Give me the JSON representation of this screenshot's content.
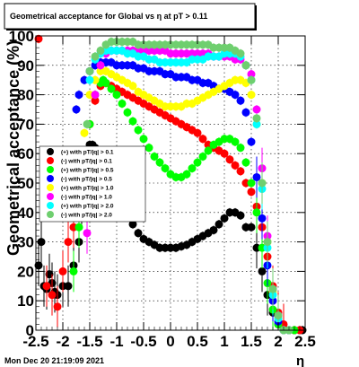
{
  "chart_data": {
    "type": "scatter",
    "title": "Geometrical acceptance for Global vs   η at pT > 0.11",
    "xlabel": "η",
    "ylabel": "Geometrical acceptance (%)",
    "xlim": [
      -2.5,
      2.5
    ],
    "ylim": [
      0,
      100
    ],
    "x_ticks": [
      "-2.5",
      "-2",
      "-1.5",
      "-1",
      "-0.5",
      "0",
      "0.5",
      "1",
      "1.5",
      "2",
      "2.5"
    ],
    "y_ticks": [
      "0",
      "10",
      "20",
      "30",
      "40",
      "50",
      "60",
      "70",
      "80",
      "90",
      "100"
    ],
    "grid": true,
    "legend_position": "left",
    "timestamp": "Mon Dec 20 21:19:09 2021",
    "series": [
      {
        "name": "(+) with pT/|q| > 0.1",
        "color": "#000000",
        "x": [
          -2.45,
          -2.4,
          -2.35,
          -2.3,
          -2.25,
          -2.2,
          -2.15,
          -2.1,
          -2.0,
          -1.9,
          -1.8,
          -1.7,
          -1.65,
          -1.6,
          -1.55,
          -1.5,
          -1.45,
          -1.4,
          -1.35,
          -1.3,
          -1.25,
          -1.2,
          -1.1,
          -1.0,
          -0.9,
          -0.8,
          -0.7,
          -0.6,
          -0.5,
          -0.4,
          -0.3,
          -0.2,
          -0.1,
          0.0,
          0.1,
          0.2,
          0.3,
          0.4,
          0.5,
          0.6,
          0.7,
          0.8,
          0.9,
          1.0,
          1.1,
          1.2,
          1.3,
          1.4,
          1.5,
          1.6,
          1.7,
          1.8,
          1.9,
          2.0,
          2.1,
          2.2,
          2.3,
          2.4,
          2.45
        ],
        "y": [
          22,
          30,
          15,
          14,
          19,
          16,
          13,
          12,
          15,
          15,
          22,
          30,
          43,
          55,
          60,
          63,
          63,
          62,
          61,
          60,
          59,
          57,
          52,
          47,
          43,
          39,
          36,
          33,
          31,
          30,
          29,
          28,
          28,
          28,
          28,
          28.5,
          29,
          30,
          31,
          32,
          33,
          34,
          36,
          38,
          40,
          40,
          39,
          35,
          35,
          28,
          20,
          12,
          6,
          2,
          0.5,
          0,
          0,
          0,
          0
        ]
      },
      {
        "name": "(-) with pT/|q| > 0.1",
        "color": "#ff0000",
        "x": [
          -2.45,
          -2.3,
          -2.2,
          -2.1,
          -2.0,
          -1.9,
          -1.8,
          -1.7,
          -1.6,
          -1.5,
          -1.4,
          -1.3,
          -1.2,
          -1.1,
          -1.0,
          -0.9,
          -0.8,
          -0.7,
          -0.6,
          -0.5,
          -0.4,
          -0.3,
          -0.2,
          -0.1,
          0.0,
          0.1,
          0.2,
          0.3,
          0.4,
          0.5,
          0.6,
          0.7,
          0.8,
          0.9,
          1.0,
          1.1,
          1.2,
          1.3,
          1.4,
          1.5,
          1.6,
          1.7,
          1.8,
          1.9,
          2.0,
          2.1,
          2.2,
          2.3,
          2.4
        ],
        "y": [
          99,
          15,
          12,
          8,
          20,
          30,
          35,
          45,
          60,
          70,
          78,
          83,
          84,
          83,
          82,
          81,
          80,
          79,
          78,
          77,
          76,
          75,
          74,
          73,
          72,
          71,
          70,
          69,
          68,
          67,
          65,
          63,
          62,
          61,
          60,
          58,
          56,
          54,
          50,
          47,
          42,
          35,
          25,
          15,
          6,
          2,
          0,
          0,
          0
        ]
      },
      {
        "name": "(+) with pT/|q| > 0.5",
        "color": "#00ff00",
        "x": [
          -1.8,
          -1.7,
          -1.6,
          -1.5,
          -1.4,
          -1.3,
          -1.25,
          -1.2,
          -1.1,
          -1.0,
          -0.9,
          -0.8,
          -0.7,
          -0.6,
          -0.5,
          -0.4,
          -0.3,
          -0.2,
          -0.1,
          0.0,
          0.1,
          0.2,
          0.3,
          0.4,
          0.5,
          0.6,
          0.7,
          0.8,
          0.9,
          1.0,
          1.1,
          1.2,
          1.3,
          1.4,
          1.5,
          1.6,
          1.7,
          1.8,
          1.9,
          2.0,
          2.1,
          2.2,
          2.3
        ],
        "y": [
          20,
          35,
          55,
          70,
          80,
          84,
          85,
          84,
          82,
          80,
          77,
          74,
          71,
          68,
          65,
          62,
          59,
          57,
          55,
          53,
          52,
          52,
          53,
          55,
          57,
          59,
          61,
          63,
          64,
          65,
          65,
          64,
          62,
          57,
          50,
          40,
          28,
          16,
          7,
          2,
          0,
          0,
          0
        ]
      },
      {
        "name": "(-) with pT/|q| > 0.5",
        "color": "#0000ff",
        "x": [
          -1.75,
          -1.7,
          -1.6,
          -1.5,
          -1.4,
          -1.3,
          -1.2,
          -1.1,
          -1.0,
          -0.9,
          -0.8,
          -0.7,
          -0.6,
          -0.5,
          -0.4,
          -0.3,
          -0.2,
          -0.1,
          0.0,
          0.1,
          0.2,
          0.3,
          0.4,
          0.5,
          0.6,
          0.7,
          0.8,
          0.9,
          1.0,
          1.1,
          1.2,
          1.3,
          1.4,
          1.5,
          1.6,
          1.7,
          1.8,
          1.9,
          2.0,
          2.1,
          2.2
        ],
        "y": [
          75,
          80,
          85,
          88,
          90,
          91,
          91,
          91,
          90,
          90,
          90,
          90,
          89,
          89,
          88,
          88,
          88,
          87,
          87,
          86,
          86,
          86,
          85,
          85,
          84,
          84,
          83,
          82,
          82,
          81,
          80,
          78,
          74,
          64,
          52,
          38,
          22,
          10,
          3,
          0,
          0
        ]
      },
      {
        "name": "(+) with pT/|q| > 1.0",
        "color": "#ffff00",
        "x": [
          -1.6,
          -1.5,
          -1.4,
          -1.3,
          -1.2,
          -1.1,
          -1.0,
          -0.9,
          -0.8,
          -0.7,
          -0.6,
          -0.5,
          -0.4,
          -0.3,
          -0.2,
          -0.1,
          0.0,
          0.1,
          0.2,
          0.3,
          0.4,
          0.5,
          0.6,
          0.7,
          0.8,
          0.9,
          1.0,
          1.1,
          1.2,
          1.3,
          1.4,
          1.5,
          1.6,
          1.7,
          1.8,
          1.9,
          2.0,
          2.1,
          2.2
        ],
        "y": [
          67,
          80,
          85,
          88,
          88,
          87,
          86,
          85,
          84,
          83,
          81,
          80,
          79,
          78,
          77,
          76,
          76,
          76,
          76,
          77,
          77,
          78,
          79,
          80,
          81,
          82,
          83,
          84,
          85,
          85,
          84,
          80,
          70,
          50,
          30,
          13,
          4,
          0,
          0
        ]
      },
      {
        "name": "(-) with pT/|q| > 1.0",
        "color": "#ff00ff",
        "x": [
          -1.55,
          -1.5,
          -1.4,
          -1.3,
          -1.2,
          -1.1,
          -1.0,
          -0.9,
          -0.8,
          -0.7,
          -0.6,
          -0.5,
          -0.4,
          -0.3,
          -0.2,
          -0.1,
          0.0,
          0.1,
          0.2,
          0.3,
          0.4,
          0.5,
          0.6,
          0.7,
          0.8,
          0.9,
          1.0,
          1.1,
          1.2,
          1.3,
          1.4,
          1.5,
          1.6,
          1.7,
          1.8,
          1.9,
          2.0,
          2.1,
          2.2
        ],
        "y": [
          33,
          55,
          80,
          90,
          94,
          95,
          95,
          95,
          95,
          95,
          95,
          95,
          95,
          95,
          95,
          95,
          94,
          94,
          94,
          94,
          94,
          94,
          94,
          94,
          93,
          93,
          93,
          93,
          92,
          92,
          90,
          87,
          75,
          55,
          32,
          14,
          5,
          0,
          0
        ]
      },
      {
        "name": "(+) with pT/|q| > 2.0",
        "color": "#00ffff",
        "x": [
          -1.6,
          -1.5,
          -1.4,
          -1.3,
          -1.2,
          -1.1,
          -1.0,
          -0.9,
          -0.8,
          -0.7,
          -0.6,
          -0.5,
          -0.4,
          -0.3,
          -0.2,
          -0.1,
          0.0,
          0.1,
          0.2,
          0.3,
          0.4,
          0.5,
          0.6,
          0.7,
          0.8,
          0.9,
          1.0,
          1.1,
          1.2,
          1.3,
          1.4,
          1.5,
          1.6,
          1.7,
          1.8,
          1.9,
          2.0,
          2.1,
          2.2
        ],
        "y": [
          60,
          85,
          92,
          94,
          95,
          95,
          95,
          95,
          94,
          94,
          93,
          93,
          92,
          92,
          91,
          91,
          91,
          91,
          91,
          91,
          92,
          92,
          92,
          93,
          93,
          93,
          94,
          94,
          94,
          93,
          90,
          85,
          70,
          48,
          28,
          12,
          4,
          0,
          0
        ]
      },
      {
        "name": "(-) with pT/|q| > 2.0",
        "color": "#6fcf6f",
        "x": [
          -1.55,
          -1.5,
          -1.4,
          -1.3,
          -1.2,
          -1.1,
          -1.0,
          -0.9,
          -0.8,
          -0.7,
          -0.6,
          -0.5,
          -0.4,
          -0.3,
          -0.2,
          -0.1,
          0.0,
          0.1,
          0.2,
          0.3,
          0.4,
          0.5,
          0.6,
          0.7,
          0.8,
          0.9,
          1.0,
          1.1,
          1.2,
          1.3,
          1.4,
          1.5,
          1.6,
          1.7,
          1.8,
          1.9,
          2.0,
          2.1,
          2.2
        ],
        "y": [
          70,
          88,
          93,
          95,
          97,
          98,
          98,
          98,
          98,
          98,
          97,
          97,
          97,
          97,
          97,
          97,
          97,
          97,
          97,
          97,
          97,
          97,
          97,
          97,
          96,
          96,
          96,
          96,
          95,
          94,
          90,
          85,
          72,
          50,
          30,
          14,
          5,
          0,
          0
        ]
      }
    ]
  }
}
